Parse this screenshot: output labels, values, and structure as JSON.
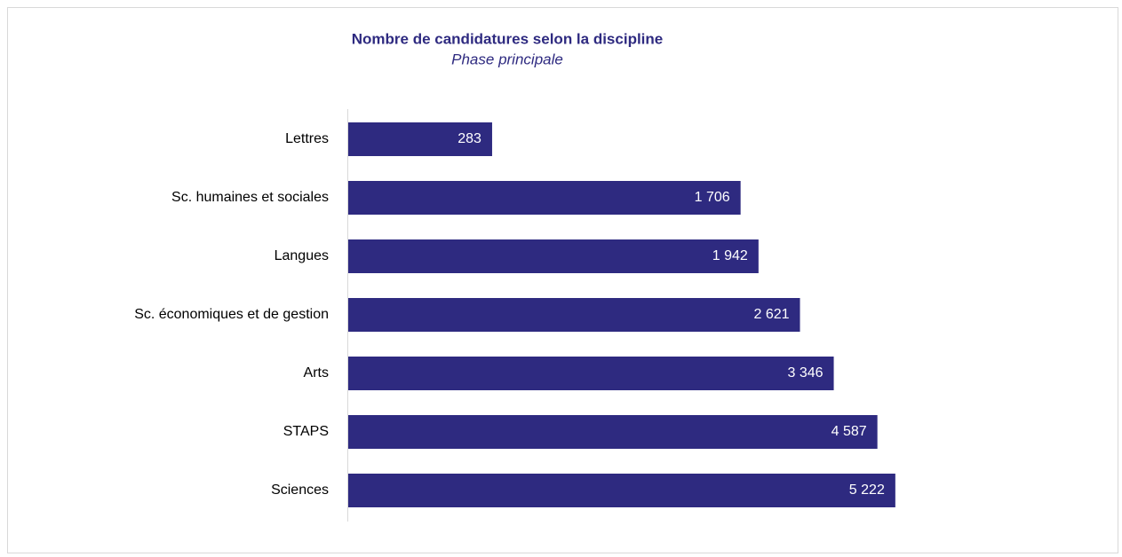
{
  "chart_data": {
    "type": "hbar",
    "title": "Nombre de candidatures selon la discipline",
    "subtitle": "Phase principale",
    "categories": [
      "Lettres",
      "Sc. humaines et sociales",
      "Langues",
      "Sc. économiques et de gestion",
      "Arts",
      "STAPS",
      "Sciences"
    ],
    "values": [
      283,
      1706,
      1942,
      2621,
      3346,
      4587,
      5222
    ],
    "value_labels": [
      "283",
      "1 706",
      "1 942",
      "2 621",
      "3 346",
      "4 587",
      "5 222"
    ],
    "color": "#2e2a80",
    "xlim": [
      100,
      10000
    ],
    "log_scale": true
  }
}
